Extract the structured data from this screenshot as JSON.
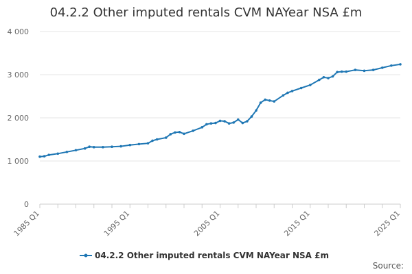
{
  "chart_data": {
    "type": "line",
    "title": "04.2.2 Other imputed rentals CVM NAYear NSA £m",
    "xlabel": "",
    "ylabel": "",
    "ylim": [
      0,
      4000
    ],
    "yticks": [
      0,
      1000,
      2000,
      3000,
      4000
    ],
    "ytick_labels": [
      "0",
      "1 000",
      "2 000",
      "3 000",
      "4 000"
    ],
    "xticks": [
      "1985 Q1",
      "1995 Q1",
      "2005 Q1",
      "2015 Q1",
      "2025 Q1"
    ],
    "xrange": [
      1985.0,
      2025.0
    ],
    "grid": true,
    "legend_position": "bottom",
    "series": [
      {
        "name": "04.2.2 Other imputed rentals CVM NAYear NSA £m",
        "color": "#1f77b4",
        "x": [
          1985.0,
          1985.5,
          1986.0,
          1987.0,
          1988.0,
          1989.0,
          1990.0,
          1990.5,
          1991.0,
          1992.0,
          1993.0,
          1994.0,
          1995.0,
          1996.0,
          1997.0,
          1997.5,
          1998.0,
          1999.0,
          1999.5,
          2000.0,
          2000.5,
          2001.0,
          2002.0,
          2003.0,
          2003.5,
          2004.0,
          2004.5,
          2005.0,
          2005.5,
          2006.0,
          2006.5,
          2007.0,
          2007.5,
          2008.0,
          2008.5,
          2009.0,
          2009.5,
          2010.0,
          2010.5,
          2011.0,
          2012.0,
          2012.5,
          2013.0,
          2014.0,
          2015.0,
          2016.0,
          2016.5,
          2017.0,
          2017.5,
          2018.0,
          2018.5,
          2019.0,
          2020.0,
          2021.0,
          2022.0,
          2023.0,
          2024.0,
          2025.0
        ],
        "values": [
          1100,
          1110,
          1140,
          1170,
          1210,
          1250,
          1290,
          1330,
          1320,
          1320,
          1330,
          1340,
          1370,
          1390,
          1410,
          1470,
          1500,
          1540,
          1620,
          1660,
          1670,
          1630,
          1700,
          1780,
          1850,
          1870,
          1880,
          1930,
          1920,
          1870,
          1890,
          1960,
          1880,
          1920,
          2030,
          2170,
          2350,
          2420,
          2400,
          2380,
          2520,
          2580,
          2620,
          2690,
          2760,
          2880,
          2940,
          2920,
          2960,
          3060,
          3070,
          3070,
          3110,
          3090,
          3110,
          3160,
          3210,
          3240
        ]
      }
    ]
  },
  "source_label": "Source:"
}
